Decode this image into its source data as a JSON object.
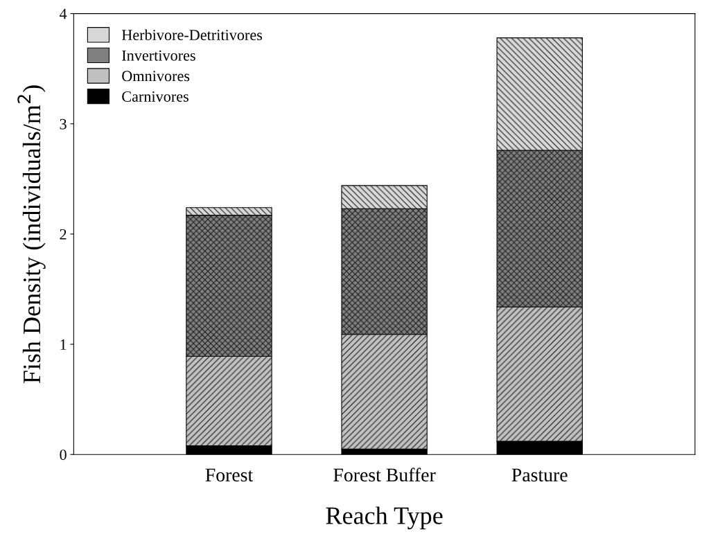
{
  "chart_data": {
    "type": "bar",
    "stacked": true,
    "xlabel": "Reach Type",
    "ylabel": "Fish Density (individuals/m$^{2}$)",
    "categories": [
      "Forest",
      "Forest Buffer",
      "Pasture"
    ],
    "series": [
      {
        "name": "Carnivores",
        "color": "#000000",
        "values": [
          0.08,
          0.05,
          0.12
        ]
      },
      {
        "name": "Omnivores",
        "color": "#c0c0c0",
        "values": [
          0.81,
          1.04,
          1.22
        ]
      },
      {
        "name": "Invertivores",
        "color": "#808080",
        "values": [
          1.28,
          1.14,
          1.42
        ]
      },
      {
        "name": "Herbivore-Detritivores",
        "color": "#d8d8d8",
        "values": [
          0.07,
          0.21,
          1.02
        ]
      }
    ],
    "ylim": [
      0,
      4
    ],
    "yticks": [
      0,
      1,
      2,
      3,
      4
    ],
    "grid": false,
    "legend": "top left"
  }
}
